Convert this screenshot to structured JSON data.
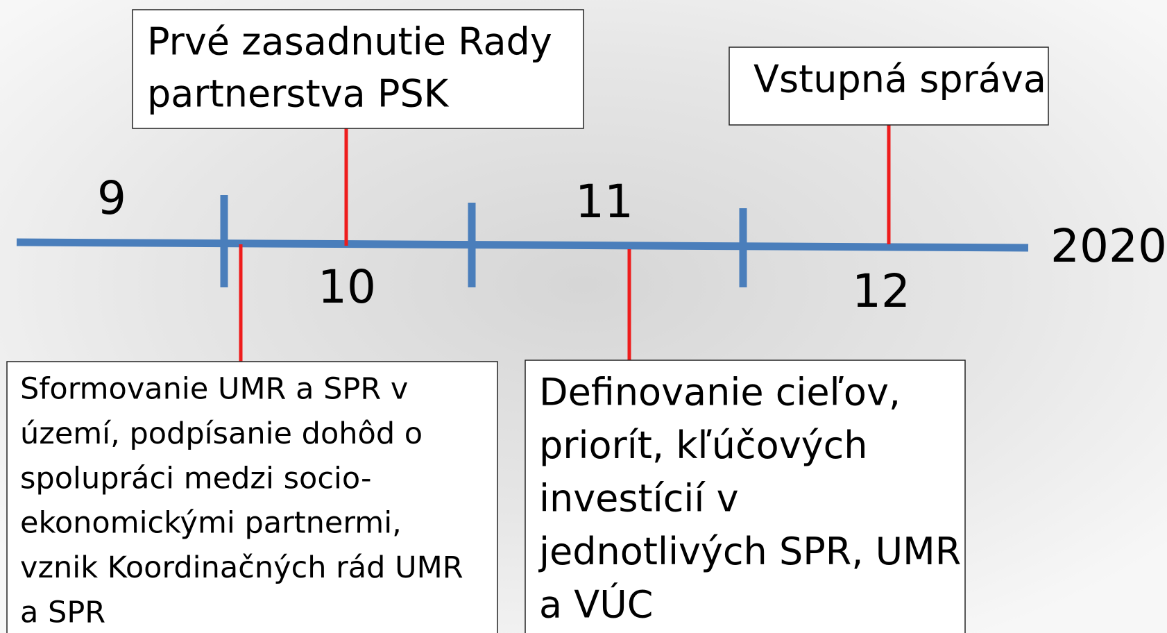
{
  "timeline": {
    "labels": [
      "9",
      "10",
      "11",
      "12"
    ],
    "end_label": "2020",
    "events": [
      {
        "lines": [
          "Prvé zasadnutie Rady",
          "partnerstva PSK"
        ]
      },
      {
        "lines": [
          "Vstupná správa"
        ]
      },
      {
        "lines": [
          "Sformovanie UMR a SPR v",
          "území, podpísanie dohôd o",
          "spolupráci medzi socio-",
          "ekonomickými partnermi,",
          "vznik Koordinačných rád UMR",
          "a SPR"
        ]
      },
      {
        "lines": [
          "Definovanie cieľov,",
          "priorít, kľúčových",
          "investícií v",
          "jednotlivých SPR, UMR",
          "a VÚC"
        ]
      }
    ]
  }
}
